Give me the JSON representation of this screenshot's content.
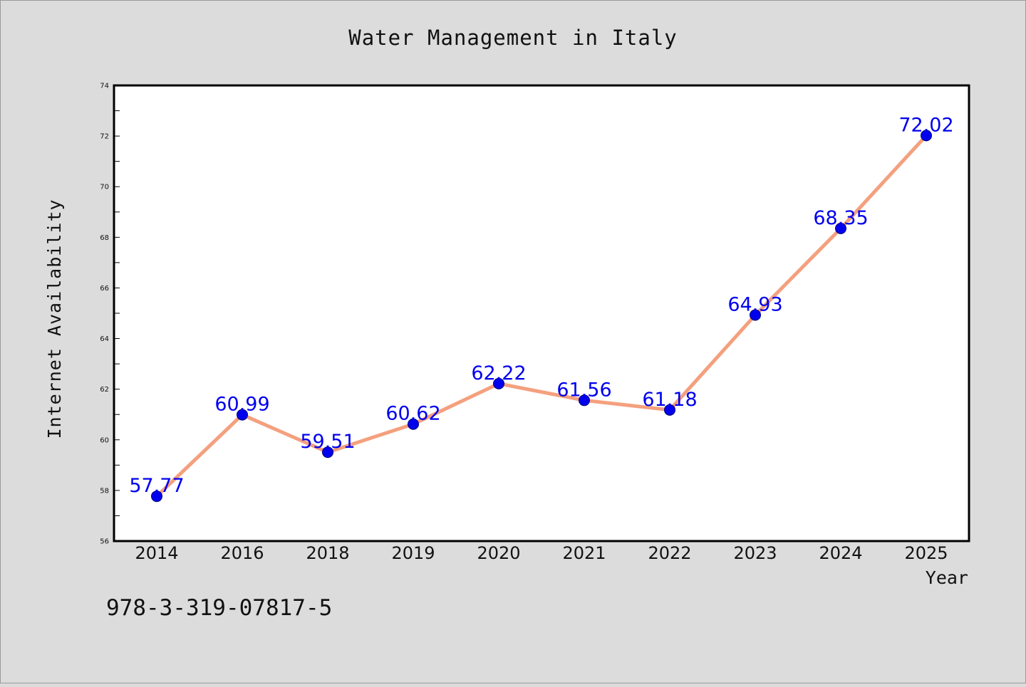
{
  "chart_data": {
    "type": "line",
    "title": "Water Management in Italy",
    "xlabel": "Year",
    "ylabel": "Internet Availability",
    "categories": [
      "2014",
      "2016",
      "2018",
      "2019",
      "2020",
      "2021",
      "2022",
      "2023",
      "2024",
      "2025"
    ],
    "series": [
      {
        "values": [
          57.77,
          60.99,
          59.51,
          60.62,
          62.22,
          61.56,
          61.18,
          64.93,
          68.35,
          72.02
        ]
      }
    ],
    "data_labels": [
      "57.77",
      "60.99",
      "59.51",
      "60.62",
      "62.22",
      "61.56",
      "61.18",
      "64.93",
      "68.35",
      "72.02"
    ],
    "ylim": [
      56,
      74
    ],
    "yticks": [
      56,
      58,
      60,
      62,
      64,
      66,
      68,
      70,
      72,
      74
    ],
    "grid": false,
    "line_color": "#f4a07e",
    "marker_color": "#0000ee",
    "label_color": "#0000ee",
    "background_color": "#dcdcdc"
  },
  "footnote": "978-3-319-07817-5"
}
